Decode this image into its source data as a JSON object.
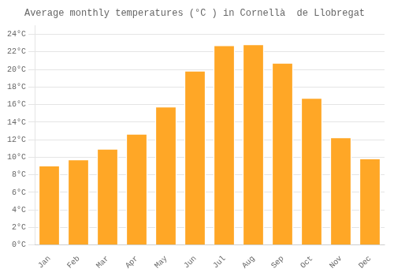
{
  "chart_data": {
    "type": "bar",
    "title": "Average monthly temperatures (°C ) in Cornellà  de Llobregat",
    "categories": [
      "Jan",
      "Feb",
      "Mar",
      "Apr",
      "May",
      "Jun",
      "Jul",
      "Aug",
      "Sep",
      "Oct",
      "Nov",
      "Dec"
    ],
    "values": [
      9.1,
      9.8,
      11.0,
      12.7,
      15.8,
      19.9,
      22.8,
      22.9,
      20.8,
      16.8,
      12.3,
      9.9
    ],
    "color": "#FFA726",
    "ylim": [
      0,
      25
    ],
    "yticks": [
      {
        "value": 0,
        "label": "0°C"
      },
      {
        "value": 2,
        "label": "2°C"
      },
      {
        "value": 4,
        "label": "4°C"
      },
      {
        "value": 6,
        "label": "6°C"
      },
      {
        "value": 8,
        "label": "8°C"
      },
      {
        "value": 10,
        "label": "10°C"
      },
      {
        "value": 12,
        "label": "12°C"
      },
      {
        "value": 14,
        "label": "14°C"
      },
      {
        "value": 16,
        "label": "16°C"
      },
      {
        "value": 18,
        "label": "18°C"
      },
      {
        "value": 20,
        "label": "20°C"
      },
      {
        "value": 22,
        "label": "22°C"
      },
      {
        "value": 24,
        "label": "24°C"
      }
    ],
    "grid": true
  }
}
